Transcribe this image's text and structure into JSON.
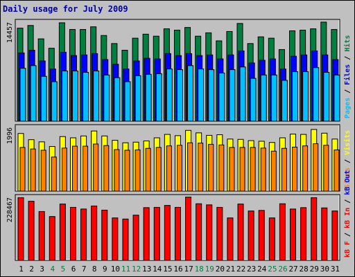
{
  "title": "Daily usage for July 2009",
  "colors": {
    "hits": "#008040",
    "files": "#0000ff",
    "pages": "#00c0ff",
    "visits": "#ffff00",
    "sites": "#ff8000",
    "kbin": "#ff0000",
    "kbout": "#0000ff",
    "kbf": "#ff0000",
    "weekend_day": "#008040",
    "weekday": "#000000",
    "panel_bg": "#c0c0c0",
    "frame_bg": "#c0c0c0"
  },
  "chart_data": [
    {
      "type": "bar",
      "panel": "hits-files-pages",
      "ymax_label": "14457",
      "legend": [
        {
          "key": "pages",
          "label": "Pages"
        },
        {
          "key": "files",
          "label": "Files"
        },
        {
          "key": "hits",
          "label": "Hits"
        }
      ],
      "legend_separator": " / ",
      "categories": [
        "1",
        "2",
        "3",
        "4",
        "5",
        "6",
        "7",
        "8",
        "9",
        "10",
        "11",
        "12",
        "13",
        "14",
        "15",
        "16",
        "17",
        "18",
        "19",
        "20",
        "21",
        "22",
        "23",
        "24",
        "25",
        "26",
        "27",
        "28",
        "29",
        "30",
        "31"
      ],
      "series": [
        {
          "name": "Hits",
          "values": [
            13900,
            14300,
            12300,
            10900,
            14700,
            13700,
            13700,
            14100,
            12800,
            11600,
            10600,
            12400,
            13000,
            12700,
            13800,
            13600,
            14000,
            12700,
            13200,
            12000,
            13400,
            14600,
            11600,
            12600,
            12400,
            10700,
            13500,
            13600,
            13800,
            14800,
            13700
          ]
        },
        {
          "name": "Files",
          "values": [
            10200,
            10600,
            9000,
            7800,
            10300,
            9800,
            9900,
            10100,
            9200,
            8500,
            7800,
            9000,
            9400,
            9300,
            10100,
            9800,
            10100,
            9800,
            9900,
            9300,
            9900,
            10500,
            8700,
            9100,
            9300,
            7800,
            9700,
            9900,
            10500,
            9900,
            9200
          ]
        },
        {
          "name": "Pages",
          "values": [
            7900,
            8300,
            6700,
            5900,
            7500,
            7500,
            7300,
            7500,
            6900,
            6500,
            5900,
            6800,
            7000,
            7100,
            7800,
            7700,
            8300,
            7800,
            7700,
            7200,
            7700,
            8100,
            6400,
            6900,
            6900,
            6100,
            7400,
            7400,
            8000,
            7300,
            6900
          ]
        }
      ]
    },
    {
      "type": "bar",
      "panel": "visits-sites",
      "ymax_label": "1996",
      "legend": [
        {
          "key": "sites",
          "label": "Sites"
        },
        {
          "key": "visits",
          "label": "Visits"
        }
      ],
      "legend_separator": " / ",
      "categories": [
        "1",
        "2",
        "3",
        "4",
        "5",
        "6",
        "7",
        "8",
        "9",
        "10",
        "11",
        "12",
        "13",
        "14",
        "15",
        "16",
        "17",
        "18",
        "19",
        "20",
        "21",
        "22",
        "23",
        "24",
        "25",
        "26",
        "27",
        "28",
        "29",
        "30",
        "31"
      ],
      "series": [
        {
          "name": "Visits",
          "values": [
            1860,
            1660,
            1590,
            1440,
            1760,
            1720,
            1780,
            1940,
            1780,
            1640,
            1560,
            1580,
            1620,
            1720,
            1830,
            1790,
            1960,
            1880,
            1800,
            1820,
            1680,
            1670,
            1630,
            1610,
            1570,
            1720,
            1840,
            1830,
            1990,
            1870,
            1680
          ]
        },
        {
          "name": "Sites",
          "values": [
            1410,
            1360,
            1320,
            1100,
            1390,
            1450,
            1450,
            1520,
            1470,
            1340,
            1320,
            1330,
            1380,
            1410,
            1460,
            1480,
            1560,
            1550,
            1510,
            1490,
            1410,
            1410,
            1410,
            1390,
            1290,
            1380,
            1420,
            1460,
            1530,
            1480,
            1330
          ]
        }
      ]
    },
    {
      "type": "bar",
      "panel": "kbytes",
      "ymax_label": "228467",
      "legend": [
        {
          "key": "kbf",
          "label": "kB F"
        },
        {
          "key": "kbin",
          "label": "kB In"
        },
        {
          "key": "kbout",
          "label": "kB Out"
        }
      ],
      "legend_separator": " / ",
      "categories": [
        "1",
        "2",
        "3",
        "4",
        "5",
        "6",
        "7",
        "8",
        "9",
        "10",
        "11",
        "12",
        "13",
        "14",
        "15",
        "16",
        "17",
        "18",
        "19",
        "20",
        "21",
        "22",
        "23",
        "24",
        "25",
        "26",
        "27",
        "28",
        "29",
        "30",
        "31"
      ],
      "series": [
        {
          "name": "kB F",
          "values": [
            226000,
            213000,
            176000,
            158000,
            203000,
            191000,
            185000,
            196000,
            181000,
            153000,
            149000,
            163000,
            190000,
            191000,
            198000,
            191000,
            228000,
            204000,
            200000,
            191000,
            153000,
            203000,
            178000,
            180000,
            153000,
            204000,
            185000,
            190000,
            226000,
            189000,
            178000
          ]
        }
      ]
    }
  ],
  "day_labels": [
    {
      "text": "1",
      "weekend": false
    },
    {
      "text": "2",
      "weekend": false
    },
    {
      "text": "3",
      "weekend": false
    },
    {
      "text": "4",
      "weekend": true
    },
    {
      "text": "5",
      "weekend": true
    },
    {
      "text": "6",
      "weekend": false
    },
    {
      "text": "7",
      "weekend": false
    },
    {
      "text": "8",
      "weekend": false
    },
    {
      "text": "9",
      "weekend": false
    },
    {
      "text": "10",
      "weekend": false
    },
    {
      "text": "11",
      "weekend": true
    },
    {
      "text": "12",
      "weekend": true
    },
    {
      "text": "13",
      "weekend": false
    },
    {
      "text": "14",
      "weekend": false
    },
    {
      "text": "15",
      "weekend": false
    },
    {
      "text": "16",
      "weekend": false
    },
    {
      "text": "17",
      "weekend": false
    },
    {
      "text": "18",
      "weekend": true
    },
    {
      "text": "19",
      "weekend": true
    },
    {
      "text": "20",
      "weekend": false
    },
    {
      "text": "21",
      "weekend": false
    },
    {
      "text": "22",
      "weekend": false
    },
    {
      "text": "23",
      "weekend": false
    },
    {
      "text": "24",
      "weekend": false
    },
    {
      "text": "25",
      "weekend": true
    },
    {
      "text": "26",
      "weekend": true
    },
    {
      "text": "27",
      "weekend": false
    },
    {
      "text": "28",
      "weekend": false
    },
    {
      "text": "29",
      "weekend": false
    },
    {
      "text": "30",
      "weekend": false
    },
    {
      "text": "31",
      "weekend": false
    }
  ]
}
